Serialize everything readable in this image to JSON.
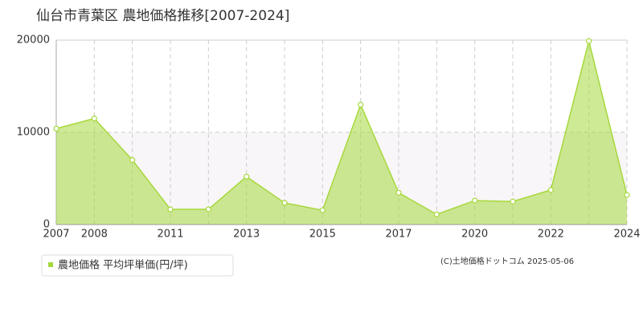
{
  "chart_data": {
    "type": "area",
    "title": "仙台市青葉区 農地価格推移[2007-2024]",
    "categories": [
      "2007",
      "2008",
      null,
      "2011",
      null,
      "2013",
      null,
      "2015",
      null,
      "2017",
      null,
      "2020",
      null,
      "2022",
      null,
      "2024"
    ],
    "series": [
      {
        "name": "農地価格 平均坪単価(円/坪)",
        "color": "#a6d83c",
        "values": [
          10400,
          11500,
          7000,
          1650,
          1650,
          5200,
          2350,
          1550,
          13000,
          3450,
          1100,
          2600,
          2500,
          3750,
          19900,
          3200
        ]
      }
    ],
    "ylim": [
      0,
      20000
    ],
    "yticks": [
      0,
      10000,
      20000
    ],
    "grid": true,
    "copyright": "(C)土地価格ドットコム 2025-05-06"
  }
}
